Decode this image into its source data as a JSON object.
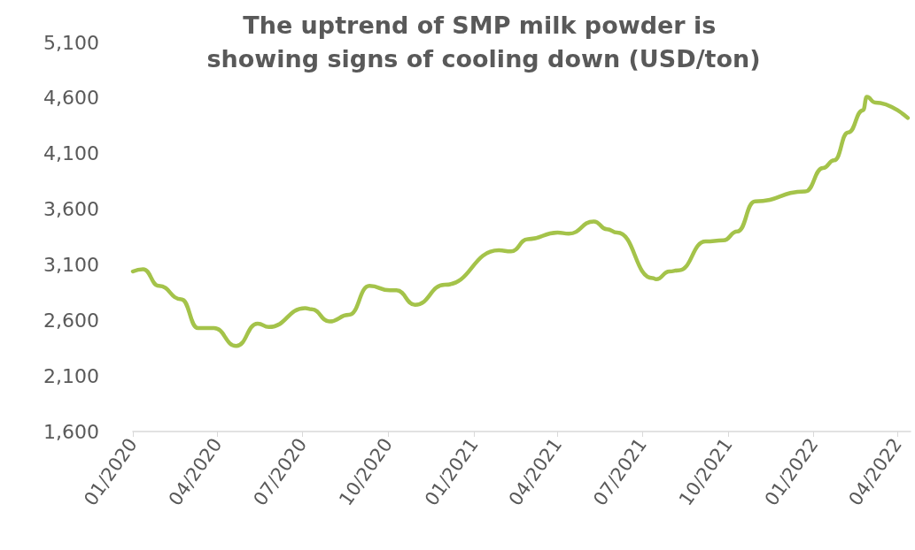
{
  "chart_data": {
    "type": "line",
    "title": "The uptrend of SMP milk powder is showing signs of cooling down (USD/ton)",
    "x": [
      "2020-01-01",
      "2020-01-12",
      "2020-01-29",
      "2020-02-22",
      "2020-03-11",
      "2020-03-28",
      "2020-04-21",
      "2020-05-14",
      "2020-05-26",
      "2020-07-04",
      "2020-07-11",
      "2020-07-30",
      "2020-08-20",
      "2020-09-11",
      "2020-10-03",
      "2020-10-10",
      "2020-10-30",
      "2020-12-01",
      "2021-01-28",
      "2021-02-10",
      "2021-02-28",
      "2021-04-01",
      "2021-04-13",
      "2021-05-10",
      "2021-05-24",
      "2021-06-04",
      "2021-07-12",
      "2021-07-16",
      "2021-07-30",
      "2021-08-09",
      "2021-09-07",
      "2021-09-26",
      "2021-10-11",
      "2021-10-30",
      "2021-12-23",
      "2022-01-11",
      "2022-01-23",
      "2022-02-07",
      "2022-02-23",
      "2022-02-27",
      "2022-03-08",
      "2022-04-12"
    ],
    "series": [
      {
        "color": "#a4c34a",
        "values": [
          3040,
          3060,
          2910,
          2790,
          2530,
          2530,
          2370,
          2570,
          2540,
          2710,
          2700,
          2590,
          2650,
          2910,
          2870,
          2870,
          2740,
          2920,
          3230,
          3220,
          3330,
          3390,
          3380,
          3490,
          3420,
          3390,
          2980,
          2970,
          3040,
          3050,
          3310,
          3320,
          3400,
          3670,
          3760,
          3970,
          4040,
          4290,
          4490,
          4610,
          4560,
          4420
        ]
      }
    ],
    "xlim": [
      "2020-01-01",
      "2022-04-15"
    ],
    "xticks": [
      {
        "value": "2020-01-01",
        "label": "01/2020"
      },
      {
        "value": "2020-04-01",
        "label": "04/2020"
      },
      {
        "value": "2020-07-01",
        "label": "07/2020"
      },
      {
        "value": "2020-10-01",
        "label": "10/2020"
      },
      {
        "value": "2021-01-01",
        "label": "01/2021"
      },
      {
        "value": "2021-04-01",
        "label": "04/2021"
      },
      {
        "value": "2021-07-01",
        "label": "07/2021"
      },
      {
        "value": "2021-10-01",
        "label": "10/2021"
      },
      {
        "value": "2022-01-01",
        "label": "01/2022"
      },
      {
        "value": "2022-04-01",
        "label": "04/2022"
      }
    ],
    "ylim": [
      1600,
      5100
    ],
    "yticks": [
      {
        "value": 1600,
        "label": "1,600"
      },
      {
        "value": 2100,
        "label": "2,100"
      },
      {
        "value": 2600,
        "label": "2,600"
      },
      {
        "value": 3100,
        "label": "3,100"
      },
      {
        "value": 3600,
        "label": "3,600"
      },
      {
        "value": 4100,
        "label": "4,100"
      },
      {
        "value": 4600,
        "label": "4,600"
      },
      {
        "value": 5100,
        "label": "5,100"
      }
    ],
    "grid": false,
    "marker": "none",
    "line_style": "solid"
  }
}
